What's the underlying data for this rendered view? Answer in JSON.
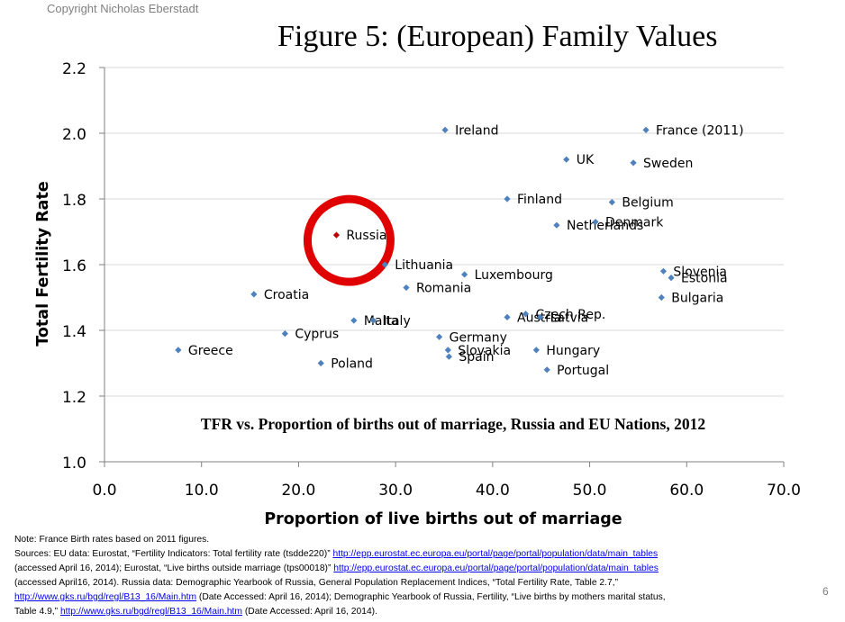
{
  "copyright": "Copyright Nicholas Eberstadt",
  "page_number": "6",
  "colors": {
    "point": "#4f81bd",
    "highlight_point": "#c00000",
    "highlight_ring": "#e00000",
    "grid": "#d9d9d9"
  },
  "chart_data": {
    "type": "scatter",
    "title": "Figure 5: (European) Family Values",
    "subtitle": "TFR vs. Proportion of births out of marriage, Russia and EU Nations, 2012",
    "xlabel": "Proportion of live births out of marriage",
    "ylabel": "Total Fertility Rate",
    "xlim": [
      0,
      70
    ],
    "ylim": [
      1.0,
      2.2
    ],
    "xticks": [
      "0.0",
      "10.0",
      "20.0",
      "30.0",
      "40.0",
      "50.0",
      "60.0",
      "70.0"
    ],
    "yticks": [
      "1.0",
      "1.2",
      "1.4",
      "1.6",
      "1.8",
      "2.0",
      "2.2"
    ],
    "grid": "horizontal",
    "points": [
      {
        "label": "Ireland",
        "x": 35.1,
        "y": 2.01
      },
      {
        "label": "France (2011)",
        "x": 55.8,
        "y": 2.01
      },
      {
        "label": "UK",
        "x": 47.6,
        "y": 1.92
      },
      {
        "label": "Sweden",
        "x": 54.5,
        "y": 1.91
      },
      {
        "label": "Finland",
        "x": 41.5,
        "y": 1.8
      },
      {
        "label": "Belgium",
        "x": 52.3,
        "y": 1.79
      },
      {
        "label": "Netherlands",
        "x": 46.6,
        "y": 1.72
      },
      {
        "label": "Denmark",
        "x": 50.6,
        "y": 1.73
      },
      {
        "label": "Russia",
        "x": 23.9,
        "y": 1.69,
        "highlight": true
      },
      {
        "label": "Lithuania",
        "x": 28.9,
        "y": 1.6
      },
      {
        "label": "Luxembourg",
        "x": 37.1,
        "y": 1.57
      },
      {
        "label": "Slovenia",
        "x": 57.6,
        "y": 1.58
      },
      {
        "label": "Estonia",
        "x": 58.4,
        "y": 1.56
      },
      {
        "label": "Croatia",
        "x": 15.4,
        "y": 1.51
      },
      {
        "label": "Romania",
        "x": 31.1,
        "y": 1.53
      },
      {
        "label": "Bulgaria",
        "x": 57.4,
        "y": 1.5
      },
      {
        "label": "Austria",
        "x": 41.5,
        "y": 1.44
      },
      {
        "label": "Czech Rep.",
        "x": 43.4,
        "y": 1.45
      },
      {
        "label": "Latvia",
        "x": 44.9,
        "y": 1.44
      },
      {
        "label": "Malta",
        "x": 25.7,
        "y": 1.43
      },
      {
        "label": "Italy",
        "x": 27.7,
        "y": 1.43
      },
      {
        "label": "Cyprus",
        "x": 18.6,
        "y": 1.39
      },
      {
        "label": "Germany",
        "x": 34.5,
        "y": 1.38
      },
      {
        "label": "Greece",
        "x": 7.6,
        "y": 1.34
      },
      {
        "label": "Slovakia",
        "x": 35.4,
        "y": 1.34
      },
      {
        "label": "Hungary",
        "x": 44.5,
        "y": 1.34
      },
      {
        "label": "Spain",
        "x": 35.5,
        "y": 1.32
      },
      {
        "label": "Poland",
        "x": 22.3,
        "y": 1.3
      },
      {
        "label": "Portugal",
        "x": 45.6,
        "y": 1.28
      }
    ]
  },
  "notes": {
    "note": "Note: France Birth rates based on 2011 figures.",
    "sources_1a": "Sources: EU data: Eurostat, “Fertility Indicators: Total fertility rate (tsdde220)” ",
    "link_1": "http://epp.eurostat.ec.europa.eu/portal/page/portal/population/data/main_tables",
    "sources_2a": "(accessed April 16, 2014); Eurostat, “Live births outside marriage (tps00018)” ",
    "link_2": "http://epp.eurostat.ec.europa.eu/portal/page/portal/population/data/main_tables",
    "sources_3": "(accessed April16, 2014). Russia data: Demographic Yearbook of Russia, General Population Replacement Indices, “Total Fertility Rate, Table 2.7,”",
    "link_3": "http://www.gks.ru/bgd/regl/B13_16/Main.htm",
    "sources_4b": " (Date Accessed: April 16, 2014); Demographic Yearbook of Russia, Fertility, “Live births by mothers marital status,",
    "sources_5a": "Table 4.9,” ",
    "link_4": "http://www.gks.ru/bgd/regl/B13_16/Main.htm",
    "sources_5b": " (Date Accessed: April 16, 2014)."
  }
}
